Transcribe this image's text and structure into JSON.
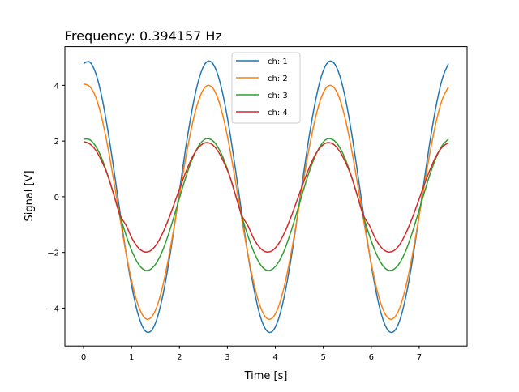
{
  "chart_data": {
    "type": "line",
    "title": "Frequency: 0.394157 Hz",
    "xlabel": "Time [s]",
    "ylabel": "Signal [V]",
    "xlim": [
      -0.39,
      8.0
    ],
    "ylim": [
      -5.36,
      5.39
    ],
    "xticks": [
      0,
      1,
      2,
      3,
      4,
      5,
      6,
      7
    ],
    "yticks": [
      -4,
      -2,
      0,
      2,
      4
    ],
    "ytick_labels": [
      "−4",
      "−2",
      "0",
      "2",
      "4"
    ],
    "grid": false,
    "legend_position": "upper center",
    "x": [
      0,
      0.127,
      0.254,
      0.381,
      0.507,
      0.634,
      0.761,
      0.888,
      1.015,
      1.142,
      1.269,
      1.395,
      1.522,
      1.649,
      1.776,
      1.903,
      2.03,
      2.157,
      2.283,
      2.41,
      2.537,
      2.664,
      2.791,
      2.918,
      3.045,
      3.171,
      3.298,
      3.425,
      3.552,
      3.679,
      3.806,
      3.933,
      4.059,
      4.186,
      4.313,
      4.44,
      4.567,
      4.694,
      4.821,
      4.947,
      5.074,
      5.201,
      5.328,
      5.455,
      5.582,
      5.708,
      5.835,
      5.962,
      6.089,
      6.216,
      6.343,
      6.47,
      6.597,
      6.723,
      6.85,
      6.977,
      7.104,
      7.231,
      7.358,
      7.485,
      7.611
    ],
    "series": [
      {
        "name": "ch: 1",
        "color": "#1f77b4",
        "values": [
          4.78,
          4.84,
          4.43,
          3.58,
          2.38,
          0.95,
          -0.57,
          -2.04,
          -3.3,
          -4.25,
          -4.78,
          -4.84,
          -4.43,
          -3.58,
          -2.38,
          -0.95,
          0.57,
          2.04,
          3.3,
          4.25,
          4.78,
          4.84,
          4.43,
          3.58,
          2.38,
          0.95,
          -0.57,
          -2.04,
          -3.3,
          -4.25,
          -4.78,
          -4.84,
          -4.43,
          -3.58,
          -2.38,
          -0.95,
          0.57,
          2.04,
          3.3,
          4.25,
          4.78,
          4.84,
          4.43,
          3.58,
          2.38,
          0.95,
          -0.57,
          -2.04,
          -3.3,
          -4.25,
          -4.78,
          -4.84,
          -4.43,
          -3.58,
          -2.38,
          -0.95,
          0.57,
          2.04,
          3.3,
          4.25,
          4.78
        ]
      },
      {
        "name": "ch: 2",
        "color": "#ff7f0e",
        "values": [
          4.05,
          3.96,
          3.58,
          2.82,
          1.77,
          0.53,
          -0.78,
          -2.04,
          -3.12,
          -3.91,
          -4.34,
          -4.36,
          -3.98,
          -3.22,
          -2.17,
          -0.93,
          0.38,
          1.64,
          2.72,
          3.51,
          3.94,
          3.96,
          3.58,
          2.82,
          1.77,
          0.53,
          -0.78,
          -2.04,
          -3.12,
          -3.91,
          -4.34,
          -4.36,
          -3.98,
          -3.22,
          -2.17,
          -0.93,
          0.38,
          1.64,
          2.72,
          3.51,
          3.94,
          3.96,
          3.58,
          2.82,
          1.77,
          0.53,
          -0.78,
          -2.04,
          -3.12,
          -3.91,
          -4.34,
          -4.36,
          -3.98,
          -3.22,
          -2.17,
          -0.93,
          0.38,
          1.64,
          2.72,
          3.51,
          3.94
        ]
      },
      {
        "name": "ch: 3",
        "color": "#2ca02c",
        "values": [
          2.07,
          2.05,
          1.81,
          1.37,
          0.76,
          0.05,
          -0.69,
          -1.39,
          -1.98,
          -2.41,
          -2.63,
          -2.61,
          -2.37,
          -1.93,
          -1.32,
          -0.61,
          0.13,
          0.83,
          1.42,
          1.85,
          2.07,
          2.05,
          1.81,
          1.37,
          0.76,
          0.05,
          -0.69,
          -1.39,
          -1.98,
          -2.41,
          -2.63,
          -2.61,
          -2.37,
          -1.93,
          -1.32,
          -0.61,
          0.13,
          0.83,
          1.42,
          1.85,
          2.07,
          2.05,
          1.81,
          1.37,
          0.76,
          0.05,
          -0.69,
          -1.39,
          -1.98,
          -2.41,
          -2.63,
          -2.61,
          -2.37,
          -1.93,
          -1.32,
          -0.61,
          0.13,
          0.83,
          1.42,
          1.85,
          2.07
        ]
      },
      {
        "name": "ch: 4",
        "color": "#d62728",
        "values": [
          1.98,
          1.9,
          1.67,
          1.27,
          0.75,
          0.05,
          -0.66,
          -1.03,
          -1.51,
          -1.83,
          -1.98,
          -1.94,
          -1.71,
          -1.31,
          -0.79,
          -0.19,
          0.42,
          0.99,
          1.47,
          1.79,
          1.94,
          1.9,
          1.67,
          1.27,
          0.75,
          0.05,
          -0.66,
          -1.03,
          -1.51,
          -1.83,
          -1.98,
          -1.94,
          -1.71,
          -1.31,
          -0.79,
          -0.19,
          0.42,
          0.99,
          1.47,
          1.79,
          1.94,
          1.9,
          1.67,
          1.27,
          0.75,
          0.05,
          -0.66,
          -1.03,
          -1.51,
          -1.83,
          -1.98,
          -1.94,
          -1.71,
          -1.31,
          -0.79,
          -0.19,
          0.42,
          0.99,
          1.47,
          1.79,
          1.94
        ]
      }
    ]
  }
}
